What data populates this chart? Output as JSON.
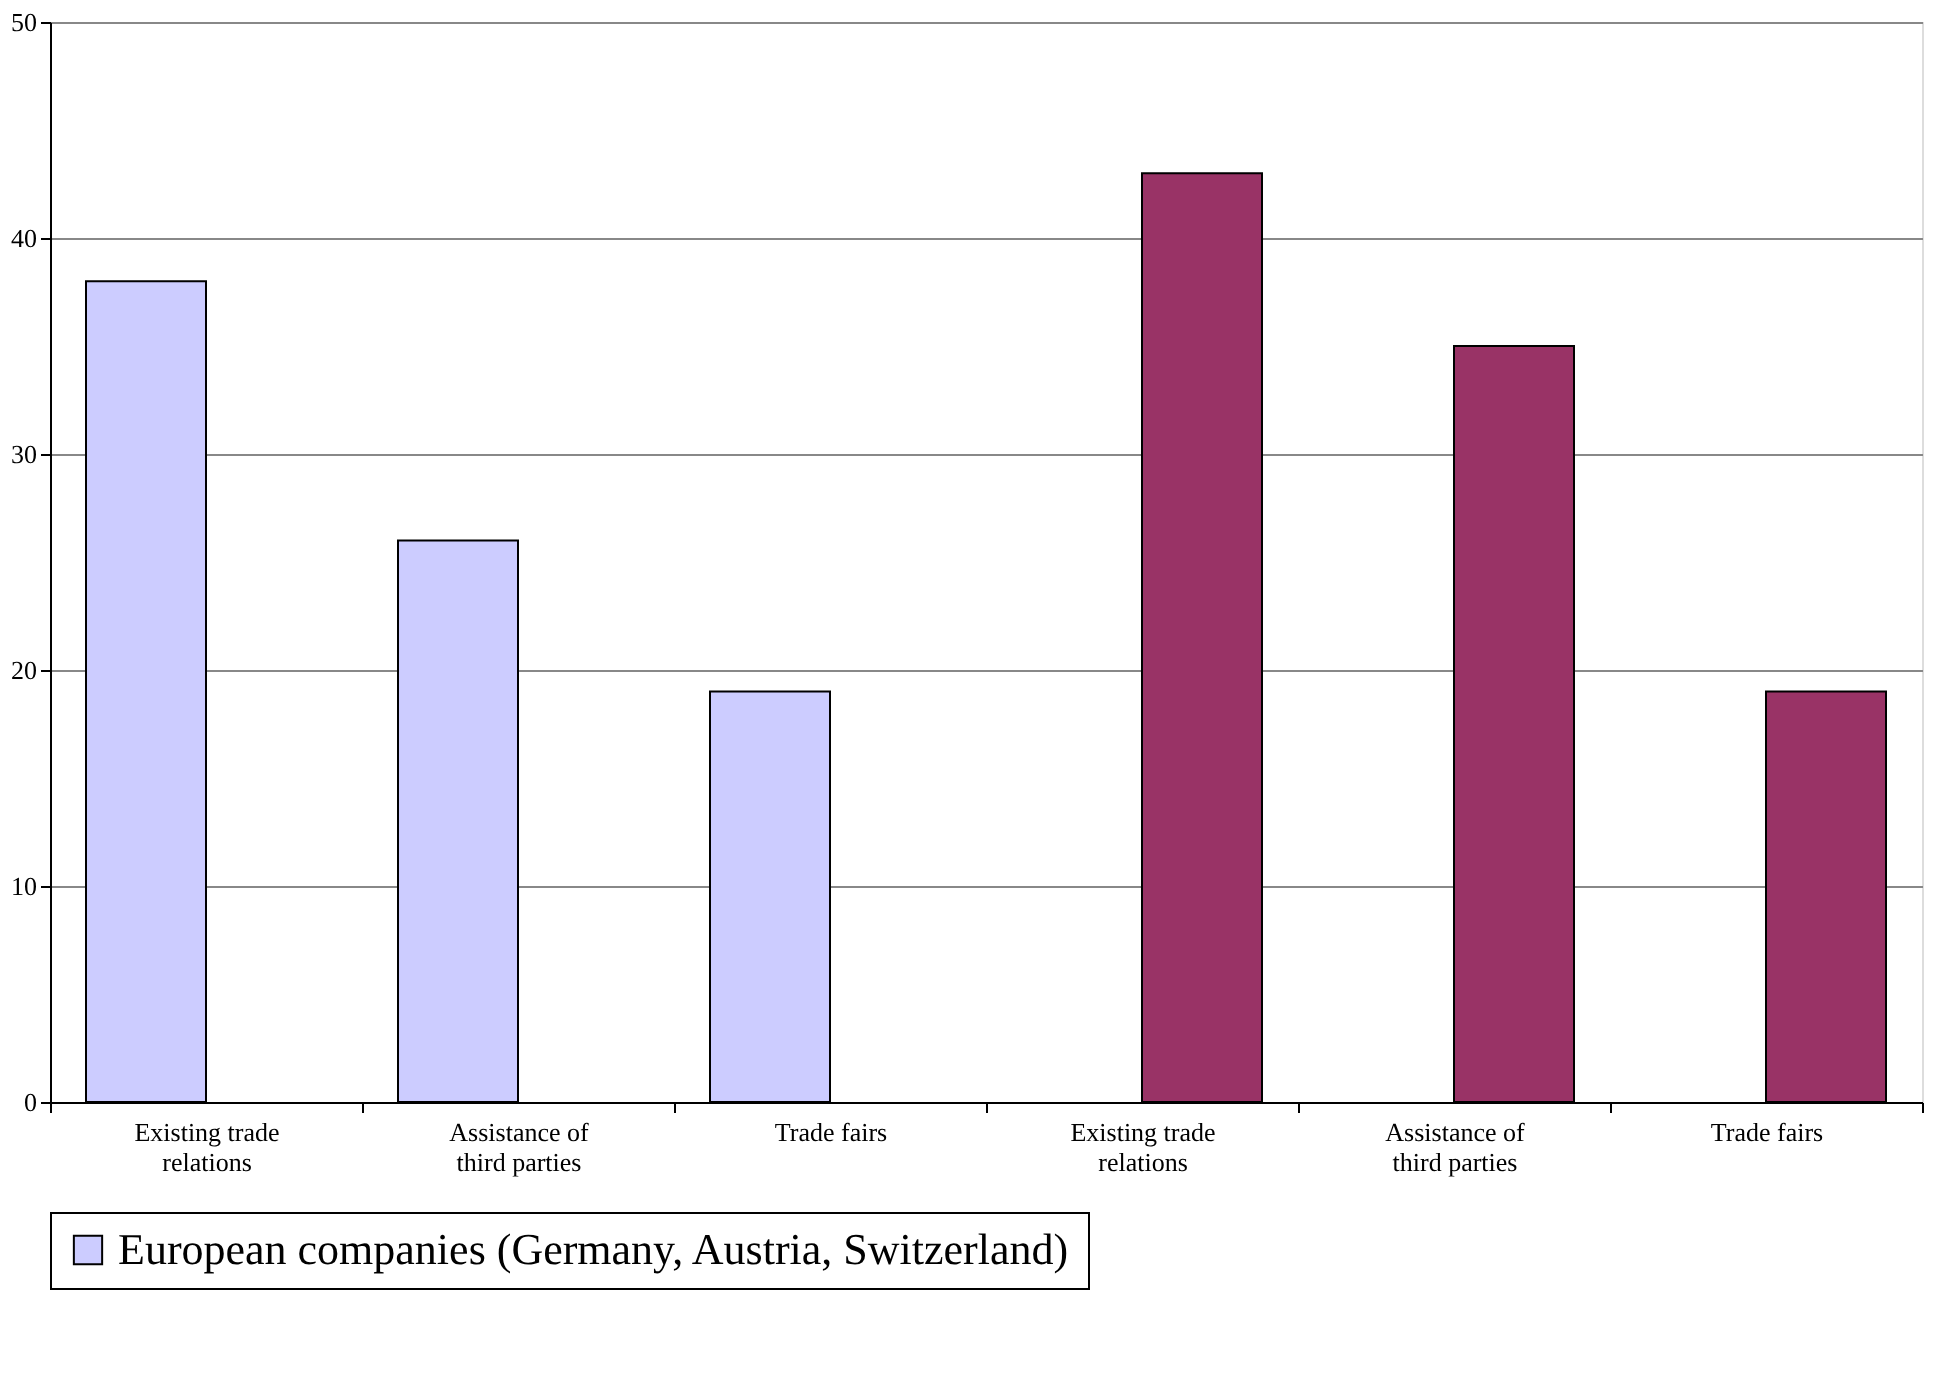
{
  "chart_data": {
    "type": "bar",
    "categories": [
      "Existing trade relations",
      "Assistance of third parties",
      "Trade fairs",
      "Existing trade relations",
      "Assistance of third parties",
      "Trade fairs"
    ],
    "series": [
      {
        "name": "European companies (Germany, Austria, Switzerland)",
        "color": "#ccccff",
        "values": [
          38,
          26,
          19,
          null,
          null,
          null
        ]
      },
      {
        "color": "#993366",
        "values": [
          null,
          null,
          null,
          43,
          35,
          19
        ]
      }
    ],
    "ylim": [
      0,
      50
    ],
    "yticks": [
      0,
      10,
      20,
      30,
      40,
      50
    ],
    "grid": "y",
    "legend": "bottom"
  }
}
